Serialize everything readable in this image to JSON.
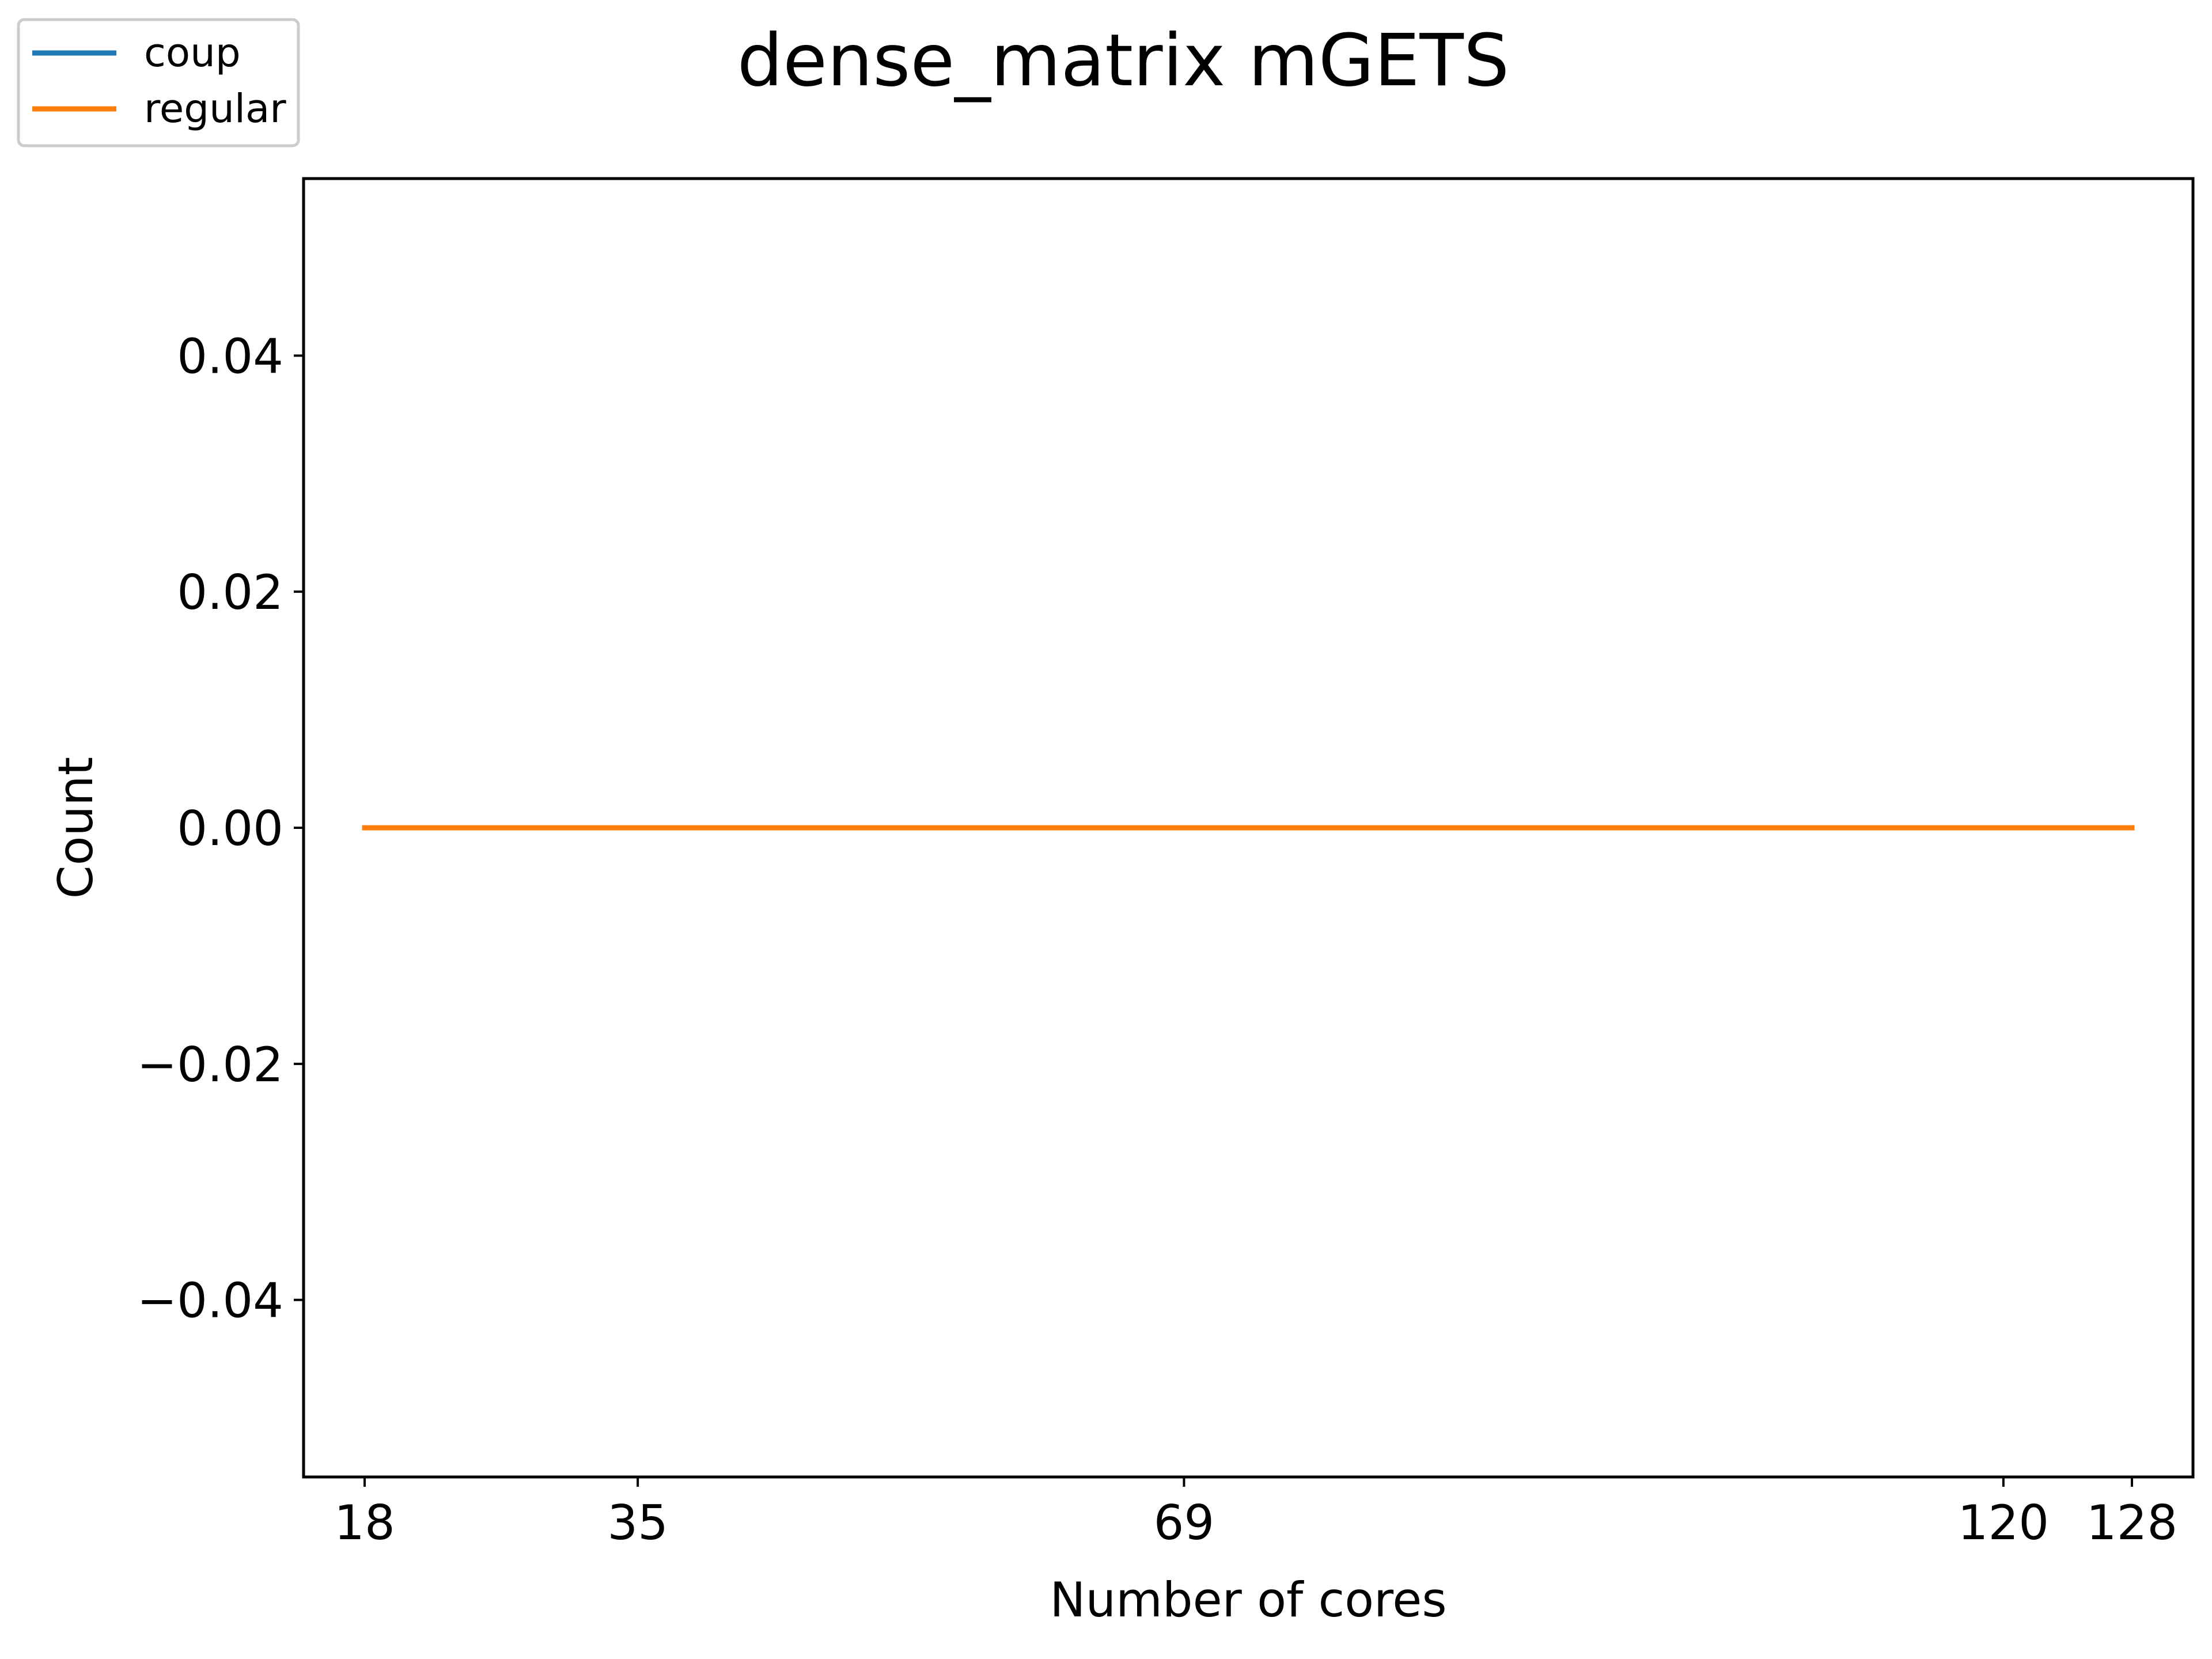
{
  "chart_data": {
    "type": "line",
    "title": "dense_matrix mGETS",
    "xlabel": "Number of cores",
    "ylabel": "Count",
    "x": [
      18,
      35,
      69,
      120,
      128
    ],
    "xticks": [
      "18",
      "35",
      "69",
      "120",
      "128"
    ],
    "yticks": [
      "−0.04",
      "−0.02",
      "0.00",
      "0.02",
      "0.04"
    ],
    "ytick_values": [
      -0.04,
      -0.02,
      0.0,
      0.02,
      0.04
    ],
    "xlim": [
      14.2,
      131.8
    ],
    "ylim": [
      -0.055,
      0.055
    ],
    "grid": false,
    "legend_position": "upper-left (outside axes)",
    "series": [
      {
        "name": "coup",
        "color": "#1f77b4",
        "values": [
          0,
          0,
          0,
          0,
          0
        ]
      },
      {
        "name": "regular",
        "color": "#ff7f0e",
        "values": [
          0,
          0,
          0,
          0,
          0
        ]
      }
    ]
  }
}
